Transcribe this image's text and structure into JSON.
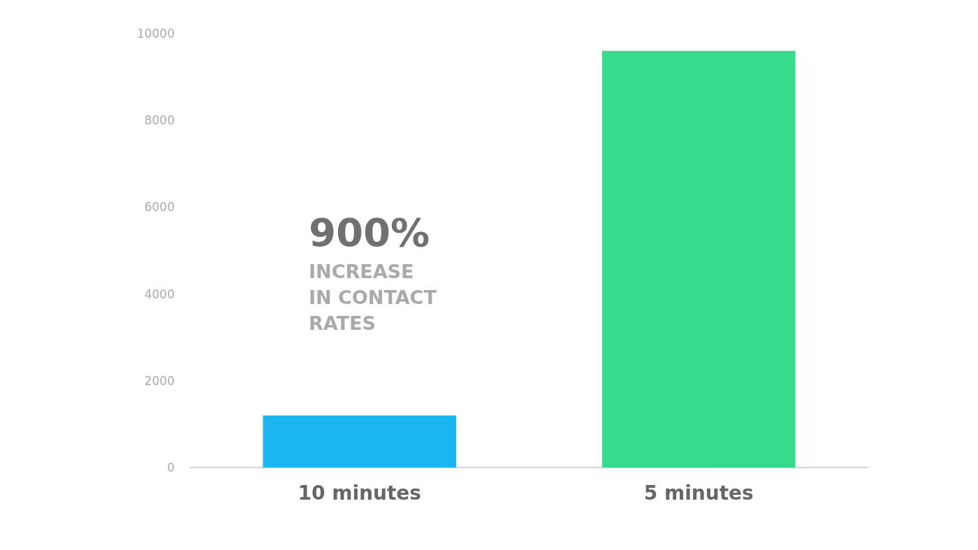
{
  "chart_data": {
    "type": "bar",
    "categories": [
      "10 minutes",
      "5 minutes"
    ],
    "colors": [
      "#1bb5f2",
      "#35db8a"
    ],
    "values": [
      1200,
      9600
    ],
    "ylim": [
      0,
      10000
    ],
    "yticks": [
      0,
      2000,
      4000,
      6000,
      8000,
      10000
    ],
    "grid": false,
    "annotations": [
      "900%",
      "INCREASE IN CONTACT RATES"
    ]
  }
}
